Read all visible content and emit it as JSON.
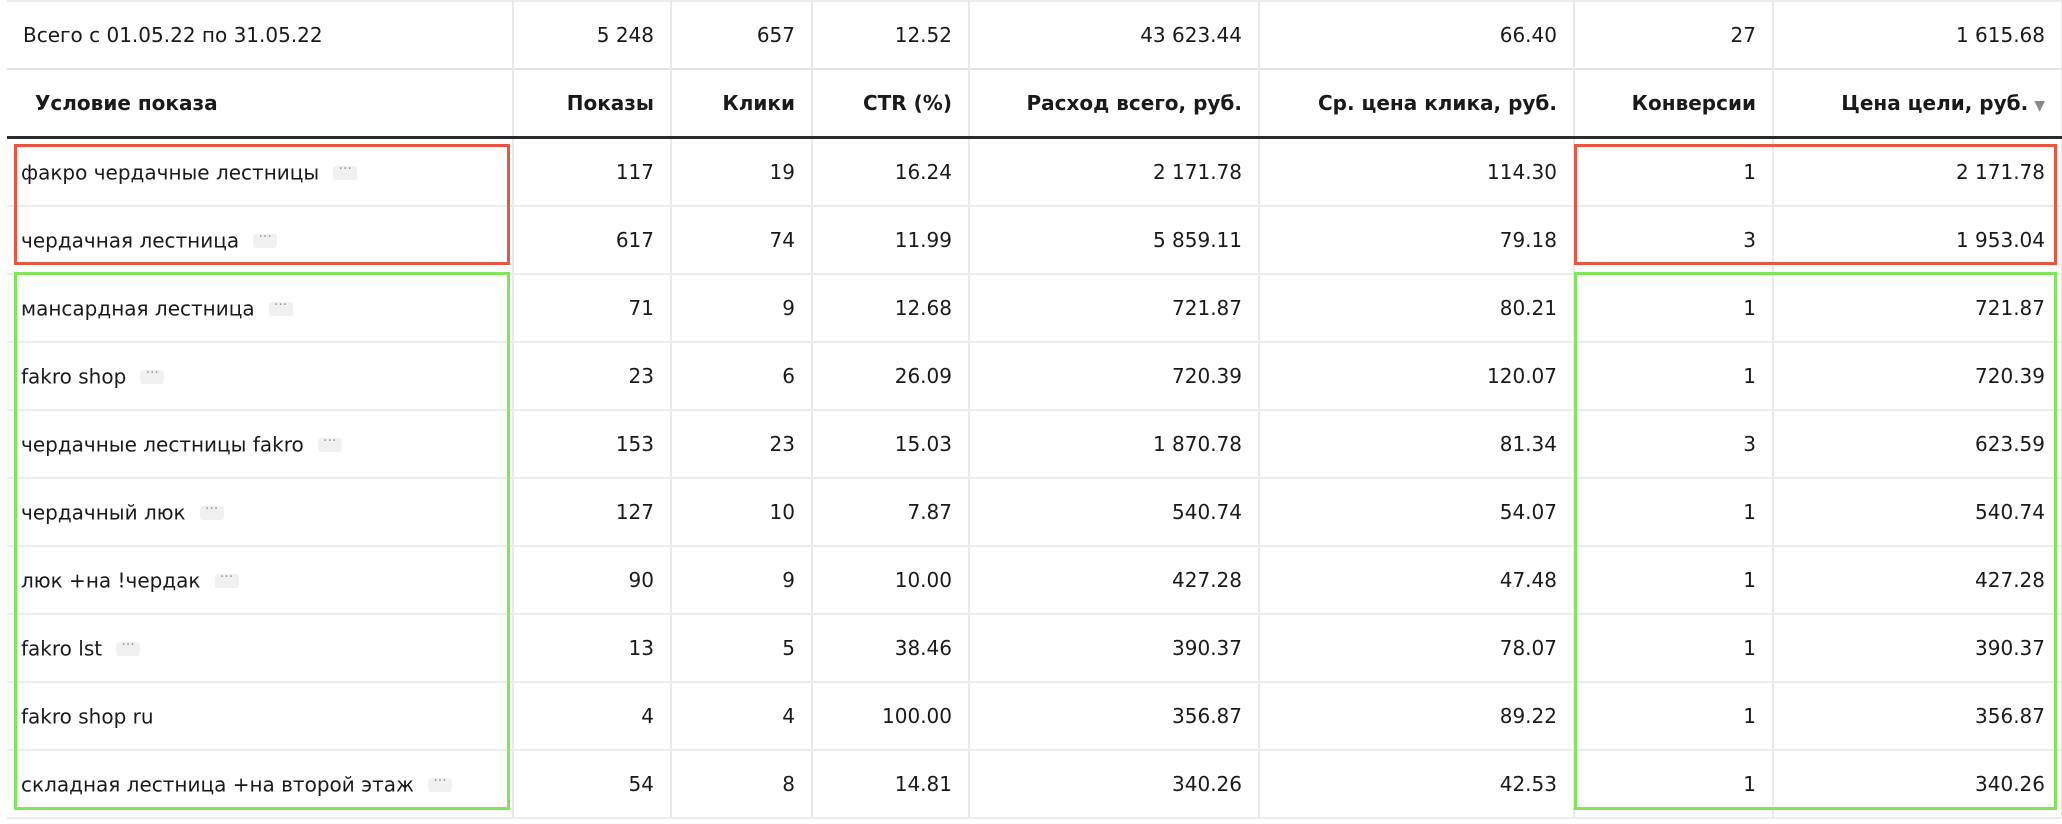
{
  "summary": {
    "label": "Всего с 01.05.22 по 31.05.22",
    "impressions": "5 248",
    "clicks": "657",
    "ctr": "12.52",
    "spend": "43 623.44",
    "avg_cpc": "66.40",
    "conversions": "27",
    "cost_per_goal": "1 615.68"
  },
  "columns": {
    "condition": "Условие показа",
    "impressions": "Показы",
    "clicks": "Клики",
    "ctr": "CTR (%)",
    "spend": "Расход всего, руб.",
    "avg_cpc": "Ср. цена клика, руб.",
    "conversions": "Конверсии",
    "cost_per_goal": "Цена цели, руб.",
    "sort_indicator": "▼"
  },
  "more_glyph": "···",
  "rows": [
    {
      "keyword": "факро чердачные лестницы",
      "impressions": "117",
      "clicks": "19",
      "ctr": "16.24",
      "spend": "2 171.78",
      "avg_cpc": "114.30",
      "conversions": "1",
      "cost_per_goal": "2 171.78"
    },
    {
      "keyword": "чердачная лестница",
      "impressions": "617",
      "clicks": "74",
      "ctr": "11.99",
      "spend": "5 859.11",
      "avg_cpc": "79.18",
      "conversions": "3",
      "cost_per_goal": "1 953.04"
    },
    {
      "keyword": "мансардная лестница",
      "impressions": "71",
      "clicks": "9",
      "ctr": "12.68",
      "spend": "721.87",
      "avg_cpc": "80.21",
      "conversions": "1",
      "cost_per_goal": "721.87"
    },
    {
      "keyword": "fakro shop",
      "impressions": "23",
      "clicks": "6",
      "ctr": "26.09",
      "spend": "720.39",
      "avg_cpc": "120.07",
      "conversions": "1",
      "cost_per_goal": "720.39"
    },
    {
      "keyword": "чердачные лестницы fakro",
      "impressions": "153",
      "clicks": "23",
      "ctr": "15.03",
      "spend": "1 870.78",
      "avg_cpc": "81.34",
      "conversions": "3",
      "cost_per_goal": "623.59"
    },
    {
      "keyword": "чердачный люк",
      "impressions": "127",
      "clicks": "10",
      "ctr": "7.87",
      "spend": "540.74",
      "avg_cpc": "54.07",
      "conversions": "1",
      "cost_per_goal": "540.74"
    },
    {
      "keyword": "люк +на !чердак",
      "impressions": "90",
      "clicks": "9",
      "ctr": "10.00",
      "spend": "427.28",
      "avg_cpc": "47.48",
      "conversions": "1",
      "cost_per_goal": "427.28"
    },
    {
      "keyword": "fakro lst",
      "impressions": "13",
      "clicks": "5",
      "ctr": "38.46",
      "spend": "390.37",
      "avg_cpc": "78.07",
      "conversions": "1",
      "cost_per_goal": "390.37"
    },
    {
      "keyword": "fakro shop ru",
      "impressions": "4",
      "clicks": "4",
      "ctr": "100.00",
      "spend": "356.87",
      "avg_cpc": "89.22",
      "conversions": "1",
      "cost_per_goal": "356.87"
    },
    {
      "keyword": "складная лестница +на второй этаж",
      "impressions": "54",
      "clicks": "8",
      "ctr": "14.81",
      "spend": "340.26",
      "avg_cpc": "42.53",
      "conversions": "1",
      "cost_per_goal": "340.26"
    }
  ],
  "highlight_colors": {
    "red": "#e9553e",
    "green": "#7fe65a"
  }
}
